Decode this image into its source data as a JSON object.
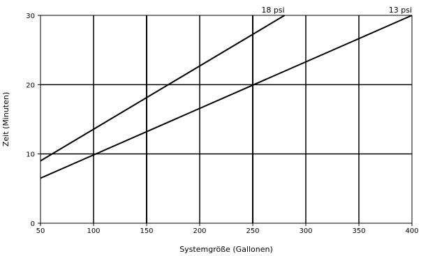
{
  "chart_data": {
    "type": "line",
    "xlabel": "Systemgröße (Gallonen)",
    "ylabel": "Zeit (Minuten)",
    "xlim": [
      50,
      400
    ],
    "ylim": [
      0,
      30
    ],
    "x_ticks": [
      50,
      100,
      150,
      200,
      250,
      300,
      350,
      400
    ],
    "y_ticks": [
      0,
      10,
      20,
      30
    ],
    "x_tick_labels": [
      "50",
      "100",
      "150",
      "200",
      "250",
      "300",
      "350",
      "400"
    ],
    "y_tick_labels": [
      "0",
      "10",
      "20",
      "30"
    ],
    "grid": true,
    "series": [
      {
        "name": "18 psi",
        "x": [
          50,
          280
        ],
        "y": [
          9,
          30
        ]
      },
      {
        "name": "13 psi",
        "x": [
          50,
          400
        ],
        "y": [
          6.5,
          30
        ]
      }
    ],
    "colors": {
      "line": "#000000",
      "grid": "#000000"
    }
  }
}
